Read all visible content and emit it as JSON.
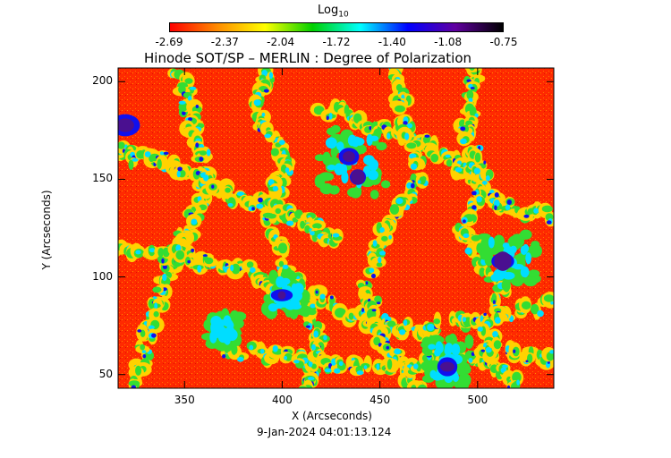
{
  "colorbar": {
    "title": "Log",
    "title_sub": "10",
    "ticks": [
      "-2.69",
      "-2.37",
      "-2.04",
      "-1.72",
      "-1.40",
      "-1.08",
      "-0.75"
    ],
    "colors": [
      "#ff0000",
      "#ff8c00",
      "#ffff00",
      "#00d000",
      "#00ffff",
      "#0000ff",
      "#6000a0",
      "#000000"
    ]
  },
  "title": "Hinode SOT/SP – MERLIN : Degree of Polarization",
  "axes": {
    "xlabel": "X (Arcseconds)",
    "ylabel": "Y (Arcseconds)",
    "xticks": [
      "350",
      "400",
      "450",
      "500"
    ],
    "yticks": [
      "200",
      "150",
      "100",
      "50"
    ],
    "xrange": [
      316,
      539
    ],
    "yrange": [
      43,
      207
    ]
  },
  "timestamp": "9-Jan-2024 04:01:13.124",
  "map_colors": {
    "background": "#ff2a00",
    "speckle": "#ff6a00",
    "network": "#ffd200",
    "green": "#33dd33",
    "cyan": "#00ddff",
    "blue": "#1010ee",
    "dark": "#4a1090"
  }
}
